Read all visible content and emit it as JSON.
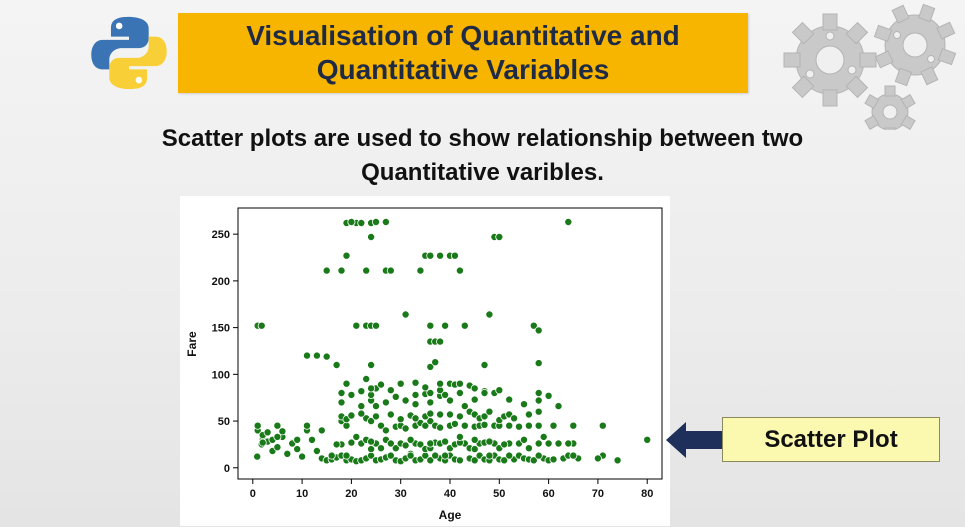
{
  "header": {
    "title_line1": "Visualisation of Quantitative and",
    "title_line2": "Quantitative Variables",
    "title_bg_color": "#f7b500",
    "title_text_color": "#1f2a44"
  },
  "icons": {
    "logo": "python-logo-icon",
    "decoration": "gears-icon",
    "pointer": "arrow-left-icon"
  },
  "subtitle": {
    "line1": "Scatter plots are used to show relationship between two",
    "line2": "Quantitative varibles."
  },
  "callout": {
    "label": "Scatter Plot",
    "bg_color": "#fbf8b0"
  },
  "chart_data": {
    "type": "scatter",
    "xlabel": "Age",
    "ylabel": "Fare",
    "xlim": [
      -3,
      83
    ],
    "ylim": [
      -12,
      278
    ],
    "xticks": [
      0,
      10,
      20,
      30,
      40,
      50,
      60,
      70,
      80
    ],
    "yticks": [
      0,
      50,
      100,
      150,
      200,
      250
    ],
    "grid": false,
    "marker_color": "#1a7a1a",
    "x": [
      0.9,
      1.8,
      2,
      3,
      4,
      5,
      6,
      7,
      8,
      9,
      10,
      11,
      12,
      13,
      14,
      15,
      16,
      17,
      18,
      19,
      20,
      21,
      22,
      23,
      24,
      25,
      26,
      27,
      28,
      29,
      30,
      31,
      32,
      33,
      34,
      35,
      36,
      37,
      38,
      39,
      40,
      41,
      42,
      43,
      44,
      45,
      46,
      47,
      48,
      49,
      50,
      51,
      52,
      53,
      54,
      55,
      56,
      57,
      58,
      59,
      60,
      61,
      62,
      63,
      64,
      65,
      66,
      70,
      71,
      74,
      80,
      1,
      2,
      4,
      6,
      8,
      16,
      18,
      19,
      20,
      22,
      23,
      24,
      25,
      26,
      27,
      28,
      29,
      30,
      31,
      32,
      33,
      34,
      35,
      36,
      37,
      38,
      39,
      40,
      41,
      42,
      44,
      45,
      46,
      47,
      48,
      49,
      50,
      52,
      54,
      56,
      58,
      60,
      62,
      65,
      70,
      2,
      3,
      5,
      9,
      12,
      17,
      21,
      24,
      28,
      32,
      36,
      39,
      42,
      45,
      48,
      51,
      55,
      59,
      64,
      1,
      5,
      11,
      14,
      18,
      19,
      23,
      26,
      27,
      29,
      30,
      31,
      33,
      34,
      35,
      36,
      37,
      38,
      40,
      41,
      43,
      45,
      46,
      47,
      49,
      50,
      52,
      54,
      56,
      58,
      61,
      65,
      71,
      18,
      19,
      20,
      22,
      24,
      25,
      28,
      30,
      32,
      33,
      35,
      36,
      38,
      40,
      42,
      44,
      45,
      46,
      47,
      48,
      50,
      51,
      52,
      53,
      56,
      58,
      18,
      22,
      24,
      25,
      27,
      29,
      31,
      33,
      35,
      36,
      38,
      40,
      43,
      45,
      47,
      49,
      52,
      55,
      58,
      62,
      18,
      20,
      22,
      24,
      25,
      28,
      30,
      33,
      35,
      36,
      38,
      39,
      40,
      42,
      44,
      45,
      47,
      50,
      58,
      60,
      19,
      24,
      26,
      30,
      33,
      36,
      37,
      38,
      41,
      42,
      58,
      11,
      13,
      15,
      17,
      23,
      24,
      36,
      37,
      47,
      1,
      1.8,
      21,
      23,
      24,
      25,
      31,
      36,
      38,
      39,
      43,
      48,
      57,
      58,
      18,
      23,
      27,
      28,
      40,
      42,
      49,
      15,
      19,
      21,
      24,
      34,
      35,
      38,
      41,
      42,
      19,
      20,
      22,
      24,
      25,
      27,
      36,
      38,
      50,
      64
    ],
    "y": [
      12,
      25,
      30,
      28,
      18,
      22,
      33,
      15,
      27,
      20,
      12,
      40,
      30,
      18,
      10,
      8,
      9,
      11,
      13,
      8,
      9,
      7,
      8,
      10,
      13,
      8,
      9,
      11,
      13,
      8,
      7,
      10,
      15,
      8,
      9,
      13,
      8,
      27,
      10,
      8,
      13,
      9,
      8,
      26,
      10,
      8,
      13,
      9,
      8,
      13,
      9,
      8,
      26,
      9,
      13,
      10,
      9,
      8,
      26,
      10,
      8,
      9,
      26,
      10,
      13,
      26,
      10,
      10,
      13,
      8,
      30,
      40,
      35,
      30,
      39,
      26,
      13,
      25,
      13,
      27,
      26,
      30,
      20,
      26,
      21,
      30,
      13,
      21,
      26,
      24,
      13,
      26,
      25,
      20,
      21,
      13,
      26,
      13,
      21,
      25,
      27,
      21,
      20,
      26,
      27,
      13,
      26,
      21,
      13,
      26,
      21,
      13,
      26,
      26,
      13,
      10,
      27,
      38,
      33,
      30,
      30,
      25,
      33,
      28,
      26,
      30,
      26,
      28,
      33,
      30,
      28,
      25,
      30,
      33,
      26,
      45,
      45,
      45,
      40,
      50,
      45,
      53,
      45,
      40,
      44,
      45,
      42,
      45,
      48,
      45,
      50,
      45,
      43,
      45,
      47,
      45,
      44,
      45,
      46,
      45,
      45,
      45,
      44,
      45,
      45,
      45,
      45,
      45,
      55,
      52,
      56,
      58,
      50,
      55,
      57,
      52,
      56,
      53,
      55,
      58,
      57,
      57,
      55,
      60,
      57,
      53,
      55,
      60,
      51,
      55,
      57,
      53,
      57,
      60,
      70,
      66,
      72,
      66,
      70,
      76,
      72,
      68,
      79,
      70,
      77,
      72,
      66,
      73,
      82,
      80,
      73,
      68,
      72,
      66,
      80,
      78,
      82,
      78,
      85,
      83,
      90,
      78,
      86,
      80,
      83,
      78,
      90,
      80,
      88,
      85,
      80,
      83,
      80,
      77,
      90,
      85,
      89,
      90,
      91,
      108,
      113,
      90,
      89,
      90,
      112,
      120,
      120,
      119,
      110,
      95,
      110,
      135,
      135,
      110,
      152,
      152,
      152,
      152,
      152,
      152,
      164,
      152,
      135,
      152,
      152,
      164,
      152,
      147,
      211,
      211,
      211,
      211,
      227,
      211,
      247,
      211,
      227,
      262,
      262,
      211,
      227,
      227,
      227,
      211,
      262,
      263,
      262,
      247,
      263,
      263,
      227,
      227,
      247,
      263
    ]
  }
}
